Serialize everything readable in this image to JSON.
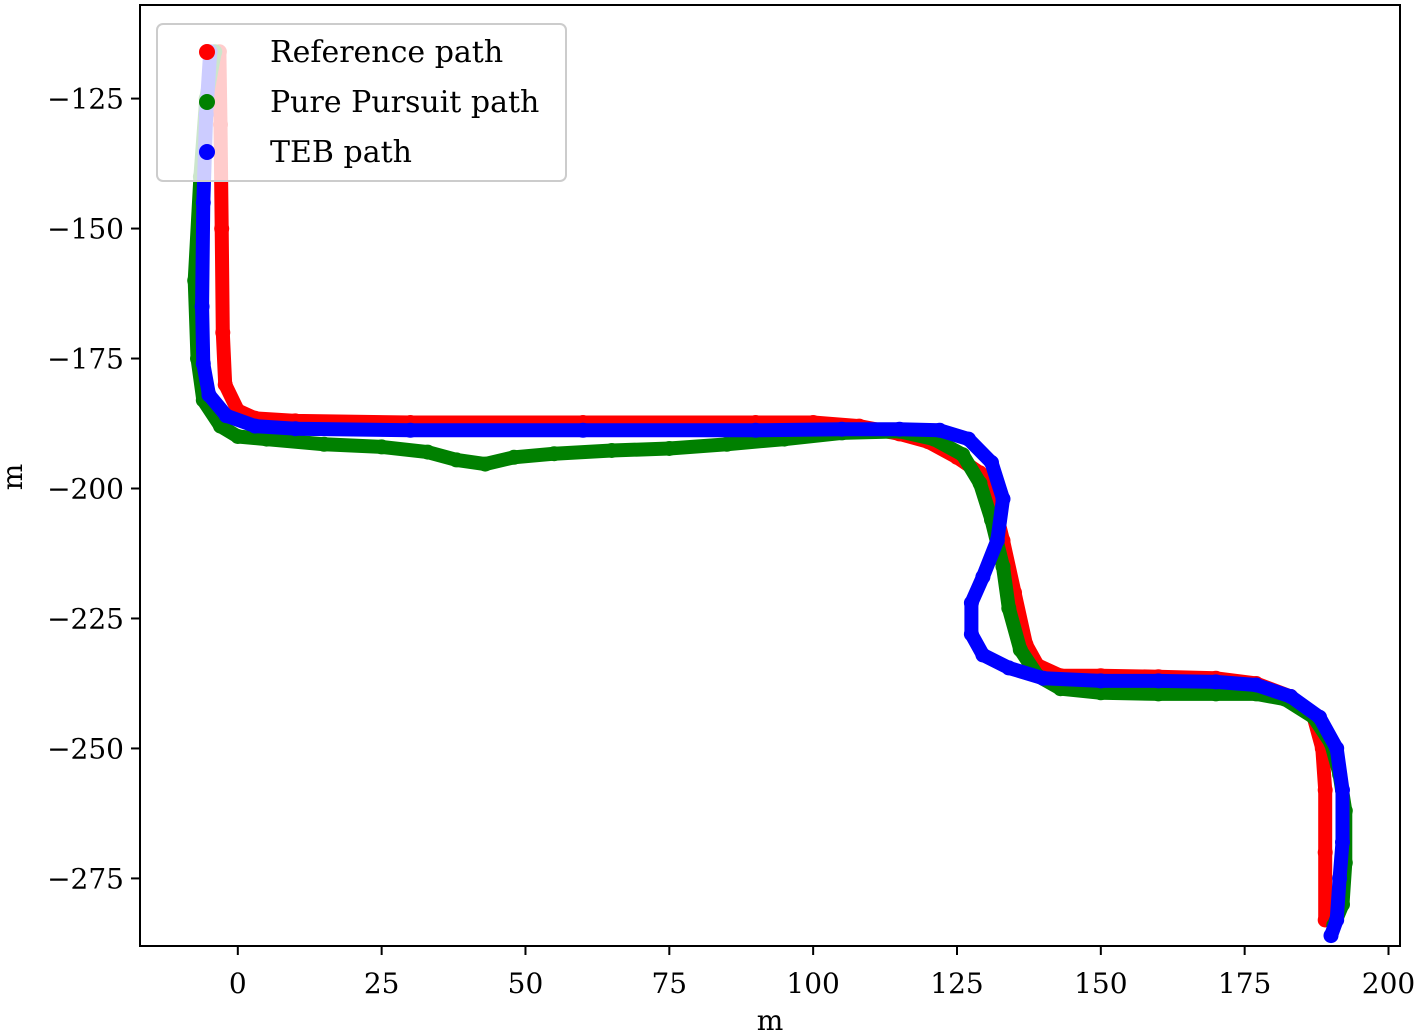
{
  "chart_data": {
    "type": "scatter",
    "title": "",
    "xlabel": "m",
    "ylabel": "m",
    "xlim": [
      -17,
      202
    ],
    "ylim": [
      -288,
      -107
    ],
    "xticks": [
      0,
      25,
      50,
      75,
      100,
      125,
      150,
      175,
      200
    ],
    "yticks": [
      -125,
      -150,
      -175,
      -200,
      -225,
      -250,
      -275
    ],
    "xtick_labels": [
      "0",
      "25",
      "50",
      "75",
      "100",
      "125",
      "150",
      "175",
      "200"
    ],
    "ytick_labels": [
      "−125",
      "−150",
      "−175",
      "−200",
      "−225",
      "−250",
      "−275"
    ],
    "grid": false,
    "legend_position": "top-left",
    "series": [
      {
        "name": "Reference path",
        "color": "#ff0000",
        "points": [
          [
            -3.2,
            -116
          ],
          [
            -3,
            -130
          ],
          [
            -2.8,
            -150
          ],
          [
            -2.6,
            -170
          ],
          [
            -2.2,
            -180
          ],
          [
            0,
            -185
          ],
          [
            3,
            -186.5
          ],
          [
            10,
            -187
          ],
          [
            30,
            -187.3
          ],
          [
            60,
            -187.3
          ],
          [
            90,
            -187.3
          ],
          [
            100,
            -187.3
          ],
          [
            108,
            -188
          ],
          [
            115,
            -189.5
          ],
          [
            120,
            -191
          ],
          [
            125,
            -194
          ],
          [
            129,
            -197
          ],
          [
            131,
            -201
          ],
          [
            133,
            -210
          ],
          [
            135,
            -220
          ],
          [
            137,
            -230
          ],
          [
            139,
            -234
          ],
          [
            143,
            -236
          ],
          [
            150,
            -236
          ],
          [
            160,
            -236.2
          ],
          [
            170,
            -236.5
          ],
          [
            177,
            -237.5
          ],
          [
            183,
            -240
          ],
          [
            187,
            -244
          ],
          [
            188.5,
            -250
          ],
          [
            189,
            -258
          ],
          [
            189,
            -270
          ],
          [
            189,
            -283
          ]
        ]
      },
      {
        "name": "Pure Pursuit path",
        "color": "#008000",
        "points": [
          [
            -4,
            -116
          ],
          [
            -5.5,
            -125
          ],
          [
            -6.5,
            -140
          ],
          [
            -7.5,
            -160
          ],
          [
            -7,
            -175
          ],
          [
            -6,
            -183
          ],
          [
            -3,
            -188
          ],
          [
            0,
            -190
          ],
          [
            5,
            -190.5
          ],
          [
            15,
            -191.5
          ],
          [
            25,
            -192
          ],
          [
            33,
            -193
          ],
          [
            38,
            -194.5
          ],
          [
            43,
            -195.3
          ],
          [
            48,
            -194
          ],
          [
            55,
            -193.3
          ],
          [
            65,
            -192.7
          ],
          [
            75,
            -192.3
          ],
          [
            85,
            -191.5
          ],
          [
            95,
            -190.5
          ],
          [
            105,
            -189.3
          ],
          [
            115,
            -189
          ],
          [
            121,
            -190.5
          ],
          [
            126,
            -193.5
          ],
          [
            129,
            -199
          ],
          [
            131,
            -206
          ],
          [
            133,
            -215
          ],
          [
            134,
            -223
          ],
          [
            136,
            -231
          ],
          [
            139,
            -236
          ],
          [
            143,
            -238.5
          ],
          [
            150,
            -239.3
          ],
          [
            160,
            -239.5
          ],
          [
            170,
            -239.5
          ],
          [
            177,
            -239.5
          ],
          [
            182,
            -240.5
          ],
          [
            187,
            -244
          ],
          [
            190,
            -249
          ],
          [
            191.5,
            -255
          ],
          [
            192.5,
            -262
          ],
          [
            192.5,
            -272
          ],
          [
            192,
            -280
          ],
          [
            190.5,
            -284
          ]
        ]
      },
      {
        "name": "TEB path",
        "color": "#0000ff",
        "points": [
          [
            -4.8,
            -116
          ],
          [
            -5.5,
            -128
          ],
          [
            -6,
            -145
          ],
          [
            -6.2,
            -165
          ],
          [
            -6,
            -176
          ],
          [
            -5,
            -182
          ],
          [
            -2,
            -186
          ],
          [
            3,
            -188
          ],
          [
            10,
            -188.5
          ],
          [
            30,
            -188.8
          ],
          [
            60,
            -188.8
          ],
          [
            90,
            -188.8
          ],
          [
            105,
            -188.6
          ],
          [
            115,
            -188.6
          ],
          [
            122,
            -188.8
          ],
          [
            127,
            -190.5
          ],
          [
            131,
            -195
          ],
          [
            133,
            -202
          ],
          [
            132,
            -210
          ],
          [
            129.5,
            -217
          ],
          [
            127.5,
            -222
          ],
          [
            127.5,
            -228
          ],
          [
            129.5,
            -232
          ],
          [
            134,
            -234.5
          ],
          [
            140,
            -236.5
          ],
          [
            150,
            -237
          ],
          [
            160,
            -237
          ],
          [
            170,
            -237.2
          ],
          [
            177,
            -237.8
          ],
          [
            183,
            -240
          ],
          [
            188,
            -244
          ],
          [
            191,
            -250
          ],
          [
            192,
            -258
          ],
          [
            192,
            -268
          ],
          [
            191.5,
            -275
          ],
          [
            191,
            -283
          ],
          [
            190,
            -286
          ]
        ]
      }
    ]
  }
}
